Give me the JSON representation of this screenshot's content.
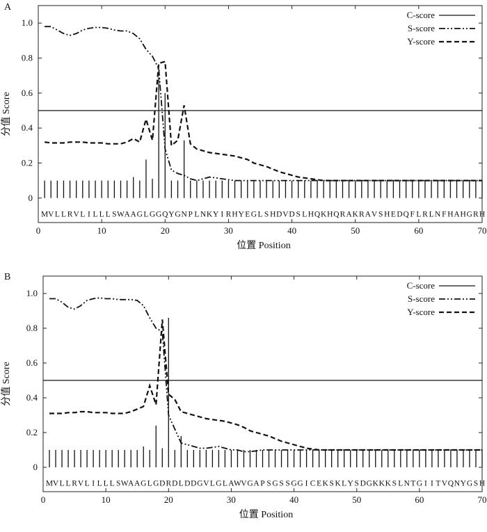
{
  "chart_data": [
    {
      "panel": "A",
      "type": "line",
      "xlabel": "位置 Position",
      "ylabel": "分值 Score",
      "xlim": [
        0,
        70
      ],
      "ylim": [
        -0.14,
        1.1
      ],
      "xticks": [
        0,
        10,
        20,
        30,
        40,
        50,
        60,
        70
      ],
      "yticks": [
        0,
        0.2,
        0.4,
        0.6,
        0.8,
        1.0
      ],
      "ytick_labels": [
        "0",
        "0.2",
        "0.4",
        "0.6",
        "0.8",
        "1.0"
      ],
      "threshold": 0.5,
      "legend": [
        "C-score",
        "S-score",
        "Y-score"
      ],
      "sequence": "MVLLRVLILLLSWAAGLGGQYGNPLNKYIRHYEGLSHDVDSLHQKHQRAKRAVSHEDQFLRLNFHAHGRH",
      "c_score": [
        0.1,
        0.1,
        0.1,
        0.1,
        0.1,
        0.1,
        0.1,
        0.1,
        0.1,
        0.1,
        0.1,
        0.1,
        0.1,
        0.1,
        0.12,
        0.1,
        0.22,
        0.11,
        0.69,
        0.6,
        0.1,
        0.1,
        0.33,
        0.1,
        0.1,
        0.1,
        0.1,
        0.1,
        0.1,
        0.1,
        0.1,
        0.1,
        0.1,
        0.1,
        0.1,
        0.1,
        0.1,
        0.1,
        0.1,
        0.1,
        0.1,
        0.1,
        0.1,
        0.1,
        0.1,
        0.1,
        0.1,
        0.1,
        0.1,
        0.1,
        0.1,
        0.1,
        0.1,
        0.1,
        0.1,
        0.1,
        0.1,
        0.1,
        0.1,
        0.1,
        0.1,
        0.1,
        0.1,
        0.1,
        0.1,
        0.1,
        0.1,
        0.1,
        0.1,
        0.1
      ],
      "s_score": [
        0.98,
        0.98,
        0.96,
        0.94,
        0.93,
        0.94,
        0.96,
        0.97,
        0.975,
        0.975,
        0.97,
        0.96,
        0.955,
        0.955,
        0.94,
        0.91,
        0.85,
        0.81,
        0.74,
        0.28,
        0.16,
        0.14,
        0.13,
        0.11,
        0.1,
        0.11,
        0.12,
        0.115,
        0.11,
        0.105,
        0.1,
        0.1,
        0.1,
        0.1,
        0.1,
        0.1,
        0.1,
        0.1,
        0.1,
        0.1,
        0.1,
        0.1,
        0.1,
        0.1,
        0.1,
        0.1,
        0.1,
        0.1,
        0.1,
        0.1,
        0.1,
        0.1,
        0.1,
        0.1,
        0.1,
        0.1,
        0.1,
        0.1,
        0.1,
        0.1,
        0.1,
        0.1,
        0.1,
        0.1,
        0.1,
        0.1,
        0.1,
        0.1,
        0.1,
        0.1
      ],
      "y_score": [
        0.32,
        0.315,
        0.315,
        0.315,
        0.32,
        0.32,
        0.32,
        0.315,
        0.315,
        0.315,
        0.31,
        0.31,
        0.31,
        0.32,
        0.34,
        0.32,
        0.45,
        0.33,
        0.77,
        0.78,
        0.3,
        0.33,
        0.53,
        0.31,
        0.28,
        0.27,
        0.26,
        0.255,
        0.25,
        0.245,
        0.24,
        0.23,
        0.22,
        0.2,
        0.19,
        0.18,
        0.165,
        0.15,
        0.14,
        0.13,
        0.12,
        0.115,
        0.11,
        0.105,
        0.1,
        0.1,
        0.1,
        0.1,
        0.1,
        0.1,
        0.1,
        0.1,
        0.1,
        0.1,
        0.1,
        0.1,
        0.1,
        0.1,
        0.1,
        0.1,
        0.1,
        0.1,
        0.1,
        0.1,
        0.1,
        0.1,
        0.1,
        0.1,
        0.1,
        0.1
      ]
    },
    {
      "panel": "B",
      "type": "line",
      "xlabel": "位置 Position",
      "ylabel": "分值 Score",
      "xlim": [
        0,
        70
      ],
      "ylim": [
        -0.14,
        1.1
      ],
      "xticks": [
        0,
        10,
        20,
        30,
        40,
        50,
        60,
        70
      ],
      "yticks": [
        0,
        0.2,
        0.4,
        0.6,
        0.8,
        1.0
      ],
      "ytick_labels": [
        "0",
        "0.2",
        "0.4",
        "0.6",
        "0.8",
        "1.0"
      ],
      "threshold": 0.5,
      "legend": [
        "C-score",
        "S-score",
        "Y-score"
      ],
      "sequence": "MVLLRVLILLLSWAAGLGDRDLDDGVLGLAWVGAPSGSSGGICEKSKLYSDGKKKSLNTGIITVQNYGSH",
      "c_score": [
        0.1,
        0.1,
        0.1,
        0.1,
        0.1,
        0.1,
        0.1,
        0.1,
        0.1,
        0.1,
        0.1,
        0.1,
        0.1,
        0.1,
        0.1,
        0.12,
        0.1,
        0.24,
        0.11,
        0.86,
        0.1,
        0.18,
        0.1,
        0.1,
        0.1,
        0.1,
        0.1,
        0.1,
        0.1,
        0.1,
        0.1,
        0.1,
        0.1,
        0.1,
        0.1,
        0.1,
        0.1,
        0.1,
        0.1,
        0.1,
        0.1,
        0.1,
        0.1,
        0.1,
        0.1,
        0.1,
        0.1,
        0.1,
        0.1,
        0.1,
        0.1,
        0.1,
        0.1,
        0.1,
        0.1,
        0.1,
        0.1,
        0.1,
        0.1,
        0.1,
        0.1,
        0.1,
        0.1,
        0.1,
        0.1,
        0.1,
        0.1,
        0.1,
        0.1,
        0.1
      ],
      "s_score": [
        0.97,
        0.97,
        0.95,
        0.92,
        0.91,
        0.93,
        0.96,
        0.97,
        0.975,
        0.97,
        0.97,
        0.965,
        0.965,
        0.965,
        0.96,
        0.93,
        0.86,
        0.8,
        0.78,
        0.3,
        0.22,
        0.14,
        0.13,
        0.12,
        0.11,
        0.11,
        0.115,
        0.12,
        0.11,
        0.1,
        0.1,
        0.09,
        0.09,
        0.095,
        0.1,
        0.1,
        0.1,
        0.1,
        0.1,
        0.1,
        0.1,
        0.1,
        0.1,
        0.1,
        0.1,
        0.1,
        0.1,
        0.1,
        0.1,
        0.1,
        0.1,
        0.1,
        0.1,
        0.1,
        0.1,
        0.1,
        0.1,
        0.1,
        0.1,
        0.1,
        0.1,
        0.1,
        0.1,
        0.1,
        0.1,
        0.1,
        0.1,
        0.1,
        0.1,
        0.1
      ],
      "y_score": [
        0.31,
        0.31,
        0.31,
        0.315,
        0.315,
        0.32,
        0.32,
        0.315,
        0.315,
        0.315,
        0.31,
        0.31,
        0.31,
        0.32,
        0.335,
        0.35,
        0.47,
        0.36,
        0.85,
        0.42,
        0.39,
        0.32,
        0.31,
        0.3,
        0.29,
        0.28,
        0.275,
        0.27,
        0.265,
        0.255,
        0.245,
        0.23,
        0.21,
        0.2,
        0.19,
        0.18,
        0.165,
        0.15,
        0.14,
        0.13,
        0.12,
        0.11,
        0.105,
        0.1,
        0.1,
        0.1,
        0.1,
        0.1,
        0.1,
        0.1,
        0.1,
        0.1,
        0.1,
        0.1,
        0.1,
        0.1,
        0.1,
        0.1,
        0.1,
        0.1,
        0.1,
        0.1,
        0.1,
        0.1,
        0.1,
        0.1,
        0.1,
        0.1,
        0.1,
        0.1
      ]
    }
  ]
}
